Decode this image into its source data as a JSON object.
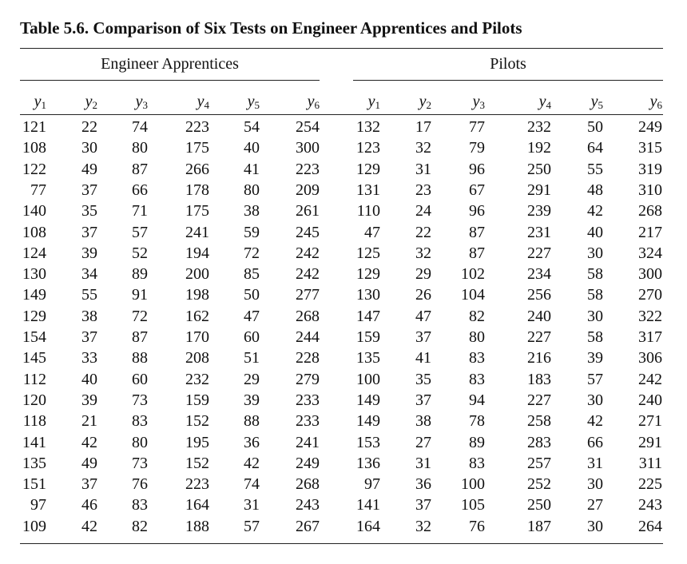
{
  "title": "Table 5.6.  Comparison of Six Tests on Engineer Apprentices and Pilots",
  "groups": [
    "Engineer Apprentices",
    "Pilots"
  ],
  "column_headers": [
    {
      "var": "y",
      "sub": "1"
    },
    {
      "var": "y",
      "sub": "2"
    },
    {
      "var": "y",
      "sub": "3"
    },
    {
      "var": "y",
      "sub": "4"
    },
    {
      "var": "y",
      "sub": "5"
    },
    {
      "var": "y",
      "sub": "6"
    },
    {
      "var": "y",
      "sub": "1"
    },
    {
      "var": "y",
      "sub": "2"
    },
    {
      "var": "y",
      "sub": "3"
    },
    {
      "var": "y",
      "sub": "4"
    },
    {
      "var": "y",
      "sub": "5"
    },
    {
      "var": "y",
      "sub": "6"
    }
  ],
  "rows": [
    [
      "121",
      "22",
      "74",
      "223",
      "54",
      "254",
      "132",
      "17",
      "77",
      "232",
      "50",
      "249"
    ],
    [
      "108",
      "30",
      "80",
      "175",
      "40",
      "300",
      "123",
      "32",
      "79",
      "192",
      "64",
      "315"
    ],
    [
      "122",
      "49",
      "87",
      "266",
      "41",
      "223",
      "129",
      "31",
      "96",
      "250",
      "55",
      "319"
    ],
    [
      "77",
      "37",
      "66",
      "178",
      "80",
      "209",
      "131",
      "23",
      "67",
      "291",
      "48",
      "310"
    ],
    [
      "140",
      "35",
      "71",
      "175",
      "38",
      "261",
      "110",
      "24",
      "96",
      "239",
      "42",
      "268"
    ],
    [
      "108",
      "37",
      "57",
      "241",
      "59",
      "245",
      "47",
      "22",
      "87",
      "231",
      "40",
      "217"
    ],
    [
      "124",
      "39",
      "52",
      "194",
      "72",
      "242",
      "125",
      "32",
      "87",
      "227",
      "30",
      "324"
    ],
    [
      "130",
      "34",
      "89",
      "200",
      "85",
      "242",
      "129",
      "29",
      "102",
      "234",
      "58",
      "300"
    ],
    [
      "149",
      "55",
      "91",
      "198",
      "50",
      "277",
      "130",
      "26",
      "104",
      "256",
      "58",
      "270"
    ],
    [
      "129",
      "38",
      "72",
      "162",
      "47",
      "268",
      "147",
      "47",
      "82",
      "240",
      "30",
      "322"
    ],
    [
      "154",
      "37",
      "87",
      "170",
      "60",
      "244",
      "159",
      "37",
      "80",
      "227",
      "58",
      "317"
    ],
    [
      "145",
      "33",
      "88",
      "208",
      "51",
      "228",
      "135",
      "41",
      "83",
      "216",
      "39",
      "306"
    ],
    [
      "112",
      "40",
      "60",
      "232",
      "29",
      "279",
      "100",
      "35",
      "83",
      "183",
      "57",
      "242"
    ],
    [
      "120",
      "39",
      "73",
      "159",
      "39",
      "233",
      "149",
      "37",
      "94",
      "227",
      "30",
      "240"
    ],
    [
      "118",
      "21",
      "83",
      "152",
      "88",
      "233",
      "149",
      "38",
      "78",
      "258",
      "42",
      "271"
    ],
    [
      "141",
      "42",
      "80",
      "195",
      "36",
      "241",
      "153",
      "27",
      "89",
      "283",
      "66",
      "291"
    ],
    [
      "135",
      "49",
      "73",
      "152",
      "42",
      "249",
      "136",
      "31",
      "83",
      "257",
      "31",
      "311"
    ],
    [
      "151",
      "37",
      "76",
      "223",
      "74",
      "268",
      "97",
      "36",
      "100",
      "252",
      "30",
      "225"
    ],
    [
      "97",
      "46",
      "83",
      "164",
      "31",
      "243",
      "141",
      "37",
      "105",
      "250",
      "27",
      "243"
    ],
    [
      "109",
      "42",
      "82",
      "188",
      "57",
      "267",
      "164",
      "32",
      "76",
      "187",
      "30",
      "264"
    ]
  ]
}
